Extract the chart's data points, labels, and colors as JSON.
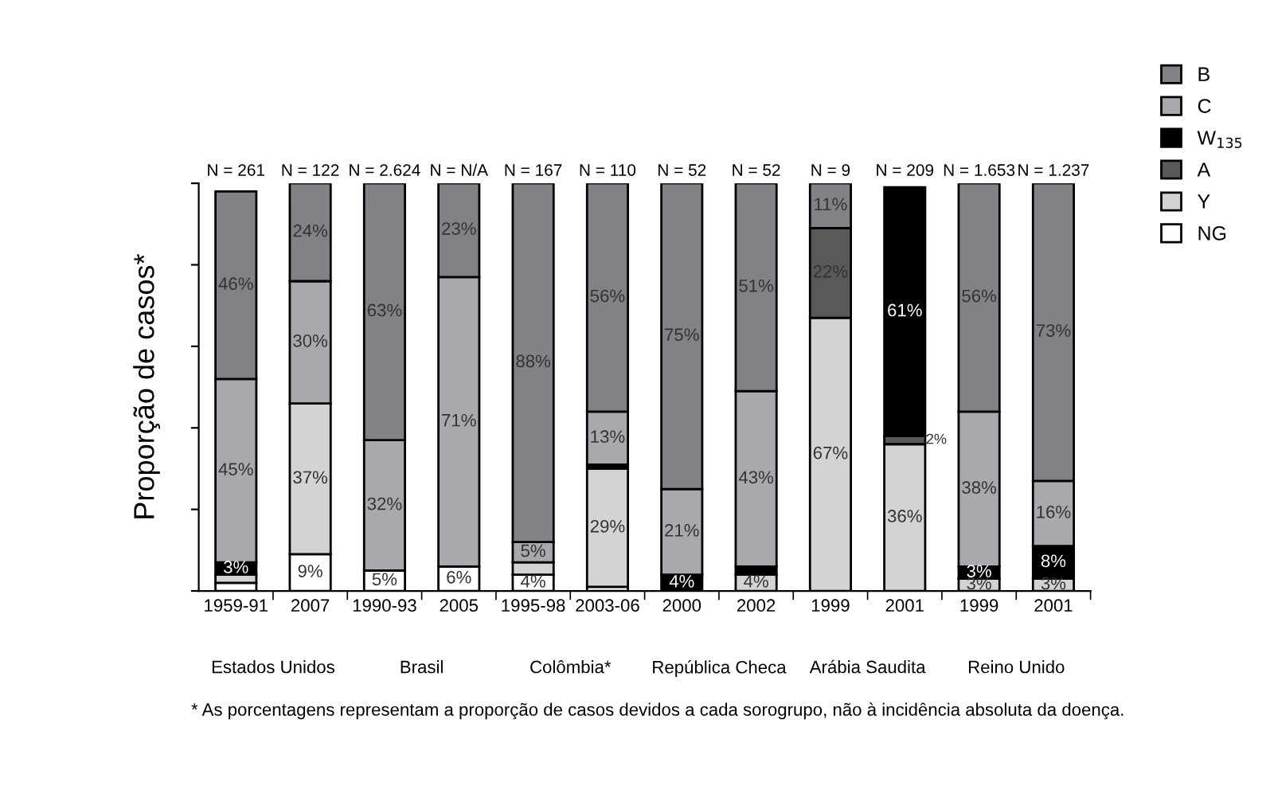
{
  "chart_data": {
    "type": "bar",
    "stacked": true,
    "ylabel": "Proporção de casos*",
    "categories": [
      "1959-91",
      "2007",
      "1990-93",
      "2005",
      "1995-98",
      "2003-06",
      "2000",
      "2002",
      "1999",
      "2001",
      "1999",
      "2001"
    ],
    "series": [
      {
        "name": "NG",
        "color": "#ffffff",
        "values": [
          2,
          9,
          5,
          6,
          4,
          1,
          0,
          0,
          0,
          0,
          0,
          0
        ],
        "value_labels": [
          null,
          "9%",
          "5%",
          "6%",
          "4%",
          null,
          null,
          null,
          null,
          null,
          null,
          null
        ]
      },
      {
        "name": "Y",
        "color": "#d1d3d4",
        "values": [
          2,
          37,
          0,
          0,
          3,
          29,
          0,
          4,
          67,
          36,
          3,
          3
        ],
        "value_labels": [
          null,
          "37%",
          null,
          null,
          null,
          "29%",
          null,
          "4%",
          "67%",
          "36%",
          "3%",
          "3%"
        ]
      },
      {
        "name": "A",
        "color": "#58595b",
        "values": [
          0,
          0,
          0,
          0,
          0,
          0,
          0,
          0,
          22,
          2,
          0,
          0
        ],
        "value_labels": [
          null,
          null,
          null,
          null,
          null,
          null,
          null,
          null,
          "22%",
          "2%",
          null,
          null
        ]
      },
      {
        "name": "W$_{135}$",
        "color": "#000000",
        "values": [
          3,
          0,
          0,
          0,
          0,
          1,
          4,
          2,
          0,
          61,
          3,
          8
        ],
        "value_labels": [
          "3%",
          null,
          null,
          null,
          null,
          null,
          "4%",
          null,
          null,
          "61%",
          "3%",
          "8%"
        ]
      },
      {
        "name": "C",
        "color": "#a7a9ac",
        "values": [
          45,
          30,
          32,
          71,
          5,
          13,
          21,
          43,
          0,
          0,
          38,
          16
        ],
        "value_labels": [
          "45%",
          "30%",
          "32%",
          "71%",
          "5%",
          "13%",
          "21%",
          "43%",
          null,
          null,
          "38%",
          "16%"
        ]
      },
      {
        "name": "B",
        "color": "#808285",
        "values": [
          46,
          24,
          63,
          23,
          88,
          56,
          75,
          51,
          11,
          0,
          56,
          73
        ],
        "value_labels": [
          "46%",
          "24%",
          "63%",
          "23%",
          "88%",
          "56%",
          "75%",
          "51%",
          "11%",
          null,
          "56%",
          "73%"
        ]
      }
    ],
    "ylim": [
      0,
      100
    ],
    "yticks": [
      {
        "value": 0,
        "label": null
      },
      {
        "value": 20,
        "label": null
      },
      {
        "value": 40,
        "label": null
      },
      {
        "value": 60,
        "label": null
      },
      {
        "value": 80,
        "label": null
      },
      {
        "value": 100,
        "label": null
      }
    ],
    "tick_labels": "x",
    "grid": false,
    "legend": "top right",
    "annotations": [
      "N = 261",
      "N = 122",
      "N = 2.624",
      "N = N/A",
      "N = 167",
      "N = 110",
      "N = 52",
      "N = 52",
      "N = 9",
      "N = 209",
      "N = 1.653",
      "N = 1.237",
      "Estados Unidos",
      "Brasil",
      "Colômbia*",
      "República Checa",
      "Arábia Saudita",
      "Reino Unido",
      "* As porcentagens representam a proporção de casos devidos a cada sorogrupo, não à incidência absoluta da doença."
    ]
  }
}
